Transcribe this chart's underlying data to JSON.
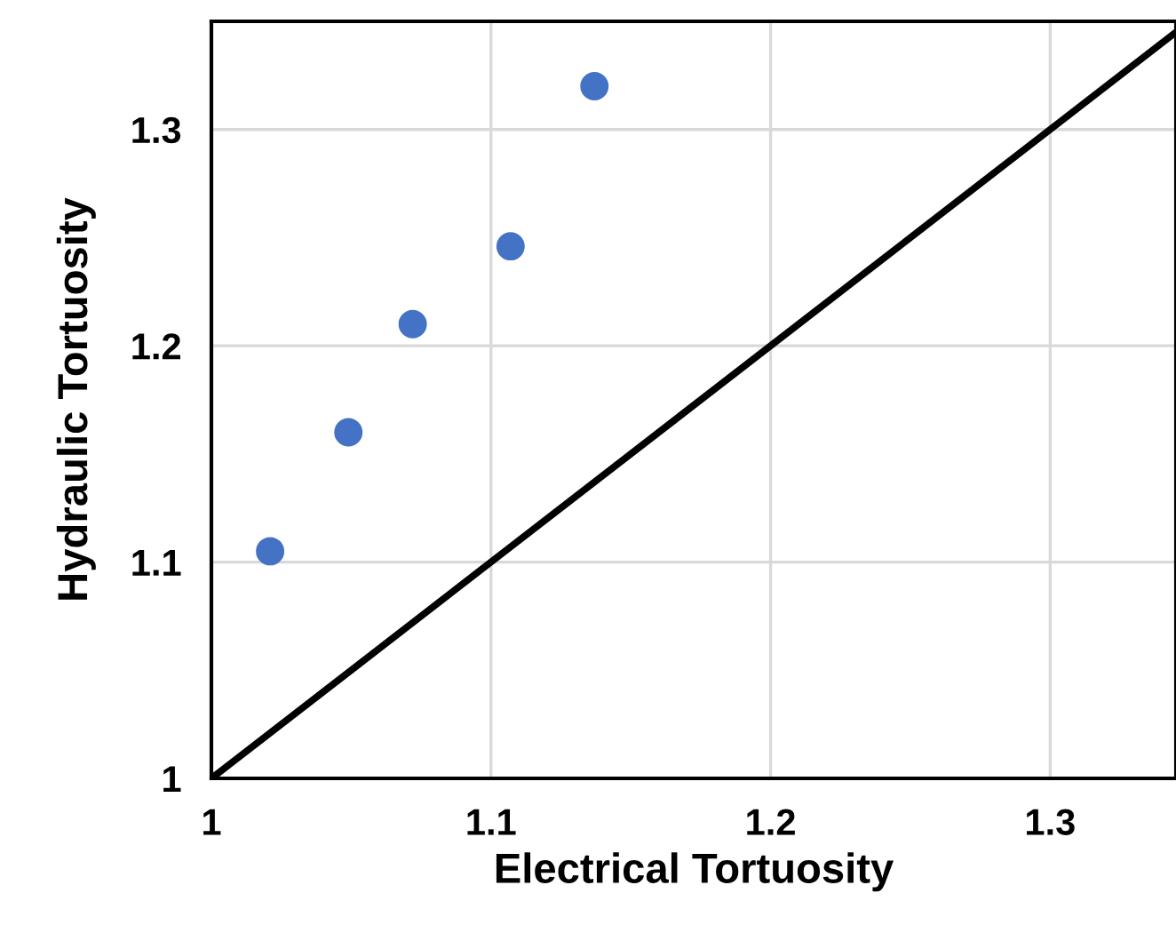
{
  "chart_data": {
    "type": "scatter",
    "xlabel": "Electrical Tortuosity",
    "ylabel": "Hydraulic Tortuosity",
    "series": [
      {
        "color": "#4472c4",
        "x": [
          1.021,
          1.049,
          1.072,
          1.107,
          1.137
        ],
        "values": [
          1.105,
          1.16,
          1.21,
          1.246,
          1.32
        ],
        "marker": "circle"
      },
      {
        "type": "line",
        "color": "#000000",
        "x": [
          1,
          1.345
        ],
        "values": [
          1,
          1.345
        ],
        "marker": "none",
        "line_style": "solid"
      }
    ],
    "xlim": [
      1,
      1.345
    ],
    "ylim": [
      1,
      1.35
    ],
    "xticks": [
      1,
      1.1,
      1.2,
      1.3
    ],
    "yticks": [
      1,
      1.1,
      1.2,
      1.3
    ],
    "grid": true,
    "legend": false
  }
}
